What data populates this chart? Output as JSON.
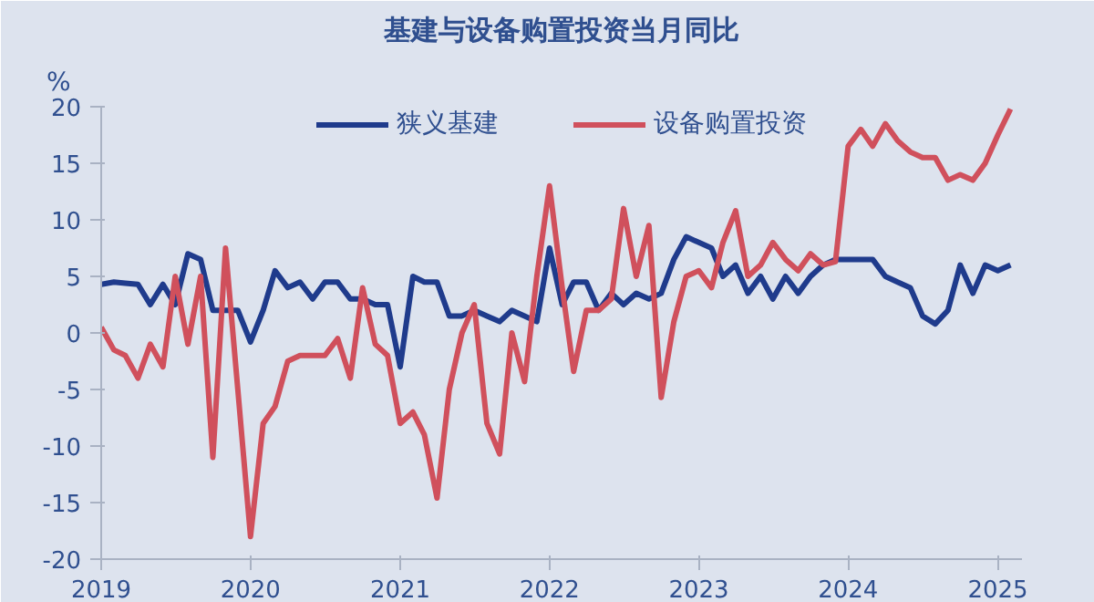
{
  "chart_data": {
    "type": "line",
    "title": "基建与设备购置投资当月同比",
    "ylabel": "%",
    "x": [
      "2019-01",
      "2019-02",
      "2019-03",
      "2019-04",
      "2019-05",
      "2019-06",
      "2019-07",
      "2019-08",
      "2019-09",
      "2019-10",
      "2019-11",
      "2019-12",
      "2020-01",
      "2020-02",
      "2020-03",
      "2020-04",
      "2020-05",
      "2020-06",
      "2020-07",
      "2020-08",
      "2020-09",
      "2020-10",
      "2020-11",
      "2020-12",
      "2021-01",
      "2021-02",
      "2021-03",
      "2021-04",
      "2021-05",
      "2021-06",
      "2021-07",
      "2021-08",
      "2021-09",
      "2021-10",
      "2021-11",
      "2021-12",
      "2022-01",
      "2022-02",
      "2022-03",
      "2022-04",
      "2022-05",
      "2022-06",
      "2022-07",
      "2022-08",
      "2022-09",
      "2022-10",
      "2022-11",
      "2022-12",
      "2023-01",
      "2023-02",
      "2023-03",
      "2023-04",
      "2023-05",
      "2023-06",
      "2023-07",
      "2023-08",
      "2023-09",
      "2023-10",
      "2023-11",
      "2023-12",
      "2024-01",
      "2024-02",
      "2024-03",
      "2024-04",
      "2024-05",
      "2024-06",
      "2024-07",
      "2024-08",
      "2024-09",
      "2024-10",
      "2024-11",
      "2024-12",
      "2025-01",
      "2025-02"
    ],
    "series": [
      {
        "name": "狭义基建",
        "color": "#1f3b8c",
        "values": [
          4.3,
          4.5,
          4.4,
          4.3,
          2.5,
          4.3,
          2.5,
          7,
          6.5,
          2,
          2,
          2,
          -0.8,
          2,
          5.5,
          4,
          4.5,
          3,
          4.5,
          4.5,
          3,
          3,
          2.5,
          2.5,
          -3,
          5,
          4.5,
          4.5,
          1.5,
          1.5,
          2,
          1.5,
          1,
          2,
          1.5,
          1,
          7.5,
          2.5,
          4.5,
          4.5,
          2,
          3.5,
          2.5,
          3.5,
          3,
          3.5,
          6.5,
          8.5,
          8,
          7.5,
          5,
          6,
          3.5,
          5,
          3,
          5,
          3.5,
          5,
          6,
          6.5,
          6.5,
          6.5,
          6.5,
          5,
          4.5,
          4,
          1.5,
          0.8,
          2,
          6,
          3.5,
          6,
          5.5,
          6
        ]
      },
      {
        "name": "设备购置投资",
        "color": "#d0505c",
        "values": [
          0.5,
          -1.5,
          -2,
          -4,
          -1,
          -3,
          5,
          -1,
          5,
          -11,
          7.5,
          -5,
          -18,
          -8,
          -6.5,
          -2.5,
          -2,
          -2,
          -2,
          -0.5,
          -4,
          4,
          -1,
          -2,
          -8,
          -7,
          -9,
          -14.6,
          -5,
          0,
          2.5,
          -8,
          -10.7,
          0,
          -4.3,
          5,
          13,
          4,
          -3.4,
          2,
          2,
          3,
          11,
          5,
          9.5,
          -5.7,
          1,
          5,
          5.5,
          4,
          8,
          10.8,
          5,
          6,
          8,
          6.5,
          5.5,
          7,
          6,
          6.3,
          16.5,
          18,
          16.5,
          18.5,
          17,
          16,
          15.5,
          15.5,
          13.5,
          14,
          13.5,
          15,
          17.5,
          19.8
        ]
      }
    ],
    "xlim": [
      "2019-01",
      "2025-03"
    ],
    "xticks": [
      {
        "value": "2019-01",
        "label": "2019"
      },
      {
        "value": "2020-01",
        "label": "2020"
      },
      {
        "value": "2021-01",
        "label": "2021"
      },
      {
        "value": "2022-01",
        "label": "2022"
      },
      {
        "value": "2023-01",
        "label": "2023"
      },
      {
        "value": "2024-01",
        "label": "2024"
      },
      {
        "value": "2025-01",
        "label": "2025"
      }
    ],
    "ylim": [
      -20,
      20
    ],
    "yticks": [
      -20,
      -15,
      -10,
      -5,
      0,
      5,
      10,
      15,
      20
    ],
    "grid": false,
    "legend": "top",
    "marker": "none",
    "line_style": "solid"
  }
}
